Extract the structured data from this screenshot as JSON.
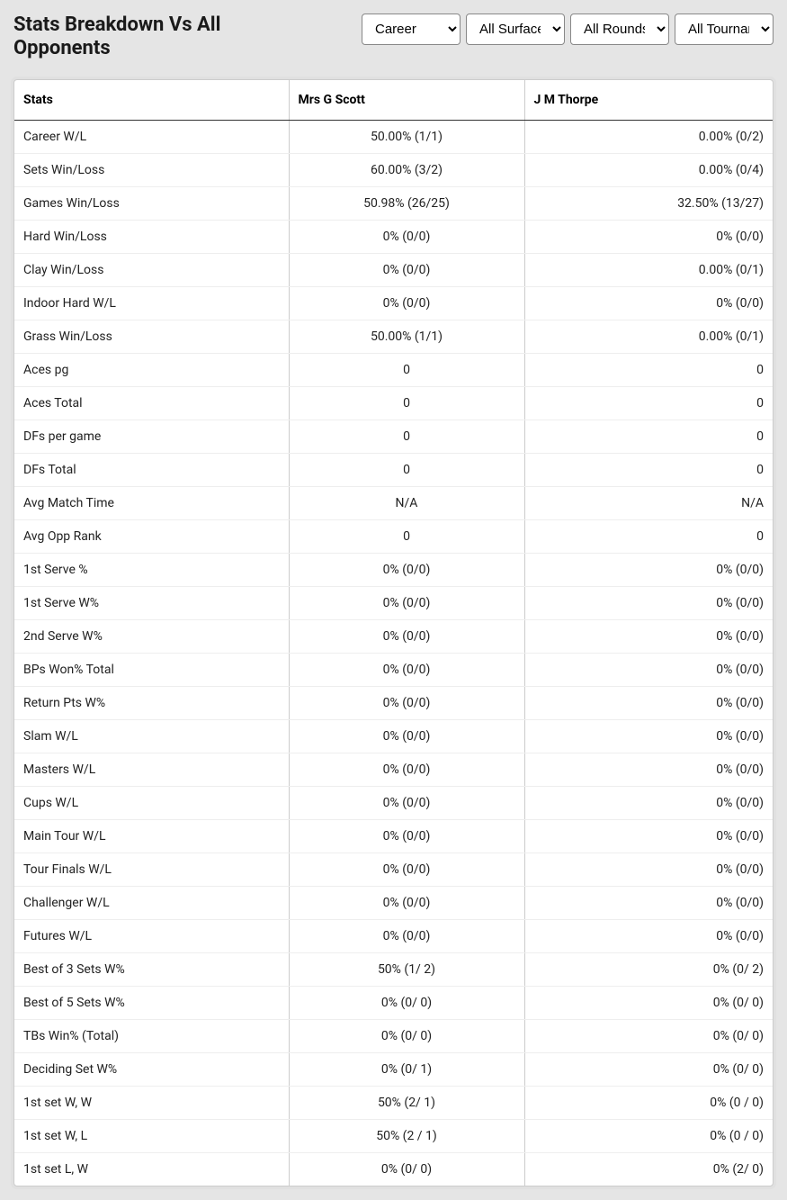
{
  "header": {
    "title": "Stats Breakdown Vs All Opponents"
  },
  "filters": {
    "career": {
      "selected": "Career",
      "options": [
        "Career"
      ]
    },
    "surface": {
      "selected": "All Surfaces",
      "options": [
        "All Surfaces"
      ]
    },
    "rounds": {
      "selected": "All Rounds",
      "options": [
        "All Rounds"
      ]
    },
    "tournament": {
      "selected": "All Tournaments",
      "options": [
        "All Tournaments"
      ]
    }
  },
  "table": {
    "columns": [
      "Stats",
      "Mrs G Scott",
      "J M Thorpe"
    ],
    "rows": [
      [
        "Career W/L",
        "50.00% (1/1)",
        "0.00% (0/2)"
      ],
      [
        "Sets Win/Loss",
        "60.00% (3/2)",
        "0.00% (0/4)"
      ],
      [
        "Games Win/Loss",
        "50.98% (26/25)",
        "32.50% (13/27)"
      ],
      [
        "Hard Win/Loss",
        "0% (0/0)",
        "0% (0/0)"
      ],
      [
        "Clay Win/Loss",
        "0% (0/0)",
        "0.00% (0/1)"
      ],
      [
        "Indoor Hard W/L",
        "0% (0/0)",
        "0% (0/0)"
      ],
      [
        "Grass Win/Loss",
        "50.00% (1/1)",
        "0.00% (0/1)"
      ],
      [
        "Aces pg",
        "0",
        "0"
      ],
      [
        "Aces Total",
        "0",
        "0"
      ],
      [
        "DFs per game",
        "0",
        "0"
      ],
      [
        "DFs Total",
        "0",
        "0"
      ],
      [
        "Avg Match Time",
        "N/A",
        "N/A"
      ],
      [
        "Avg Opp Rank",
        "0",
        "0"
      ],
      [
        "1st Serve %",
        "0% (0/0)",
        "0% (0/0)"
      ],
      [
        "1st Serve W%",
        "0% (0/0)",
        "0% (0/0)"
      ],
      [
        "2nd Serve W%",
        "0% (0/0)",
        "0% (0/0)"
      ],
      [
        "BPs Won% Total",
        "0% (0/0)",
        "0% (0/0)"
      ],
      [
        "Return Pts W%",
        "0% (0/0)",
        "0% (0/0)"
      ],
      [
        "Slam W/L",
        "0% (0/0)",
        "0% (0/0)"
      ],
      [
        "Masters W/L",
        "0% (0/0)",
        "0% (0/0)"
      ],
      [
        "Cups W/L",
        "0% (0/0)",
        "0% (0/0)"
      ],
      [
        "Main Tour W/L",
        "0% (0/0)",
        "0% (0/0)"
      ],
      [
        "Tour Finals W/L",
        "0% (0/0)",
        "0% (0/0)"
      ],
      [
        "Challenger W/L",
        "0% (0/0)",
        "0% (0/0)"
      ],
      [
        "Futures W/L",
        "0% (0/0)",
        "0% (0/0)"
      ],
      [
        "Best of 3 Sets W%",
        "50% (1/ 2)",
        "0% (0/ 2)"
      ],
      [
        "Best of 5 Sets W%",
        "0% (0/ 0)",
        "0% (0/ 0)"
      ],
      [
        "TBs Win% (Total)",
        "0% (0/ 0)",
        "0% (0/ 0)"
      ],
      [
        "Deciding Set W%",
        "0% (0/ 1)",
        "0% (0/ 0)"
      ],
      [
        "1st set W, W",
        "50% (2/ 1)",
        "0% (0 / 0)"
      ],
      [
        "1st set W, L",
        "50% (2 / 1)",
        "0% (0 / 0)"
      ],
      [
        "1st set L, W",
        "0% (0/ 0)",
        "0% (2/ 0)"
      ]
    ]
  }
}
